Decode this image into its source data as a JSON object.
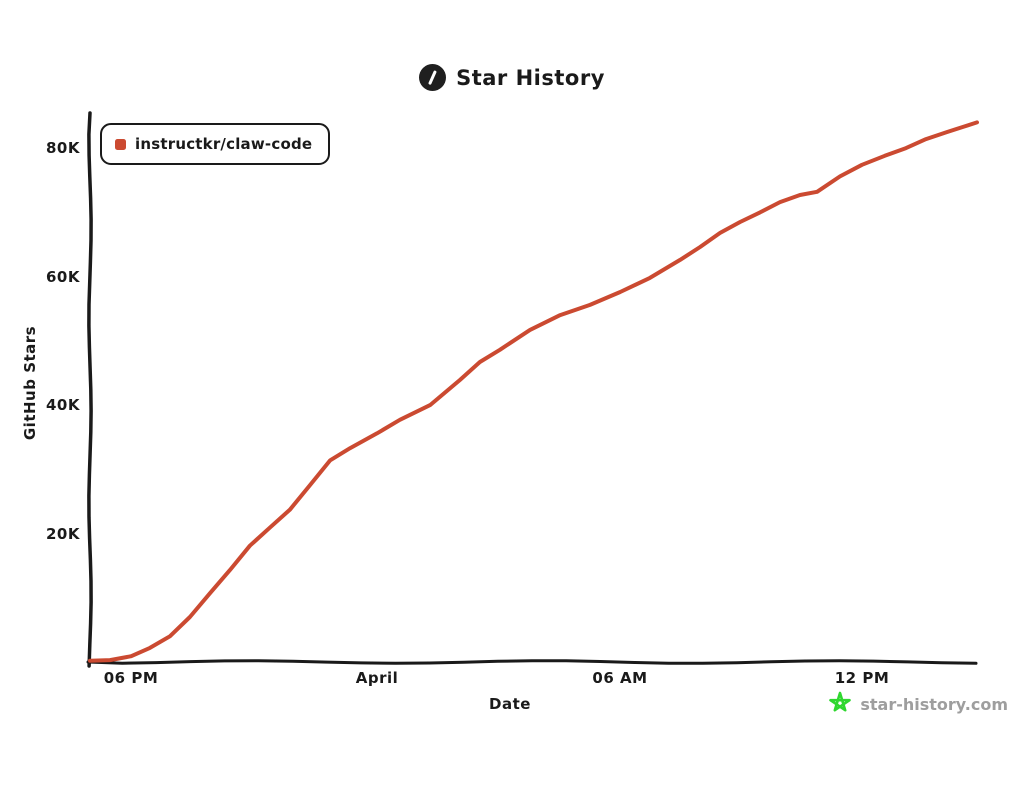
{
  "header": {
    "title": "Star History",
    "logo_icon": "star-history-logo"
  },
  "legend": {
    "items": [
      {
        "label": "instructkr/claw-code",
        "color": "#cb4a31"
      }
    ]
  },
  "watermark": {
    "label": "star-history.com",
    "icon": "green-star-icon",
    "icon_color": "#2fd72f",
    "text_color": "#9e9e9e"
  },
  "colors": {
    "axis": "#1a1a1a",
    "text": "#1a1a1a"
  },
  "chart_data": {
    "type": "line",
    "title": "Star History",
    "xlabel": "Date",
    "ylabel": "GitHub Stars",
    "grid": false,
    "legend_position": "top-left",
    "x_unit": "hours from ~5 PM Mar 31 to ~2:45 PM Apr 1",
    "y_unit": "GitHub stars, thousands",
    "xlim": [
      0,
      21.75
    ],
    "ylim": [
      0,
      85
    ],
    "x_ticks": [
      {
        "t": 1.01,
        "label": "06 PM"
      },
      {
        "t": 7.04,
        "label": "April"
      },
      {
        "t": 13.0,
        "label": "06 AM"
      },
      {
        "t": 18.93,
        "label": "12 PM"
      }
    ],
    "y_ticks": [
      {
        "v": 20,
        "label": "20K"
      },
      {
        "v": 40,
        "label": "40K"
      },
      {
        "v": 60,
        "label": "60K"
      },
      {
        "v": 80,
        "label": "80K"
      }
    ],
    "series": [
      {
        "name": "instructkr/claw-code",
        "color": "#cb4a31",
        "final_value_kstars": 84,
        "points": [
          [
            0,
            0.2
          ],
          [
            0.49,
            0.3
          ],
          [
            1.01,
            0.9
          ],
          [
            1.47,
            2.2
          ],
          [
            1.96,
            4.0
          ],
          [
            2.45,
            7.0
          ],
          [
            2.94,
            10.7
          ],
          [
            3.43,
            14.3
          ],
          [
            3.92,
            18.1
          ],
          [
            4.41,
            20.9
          ],
          [
            4.9,
            23.7
          ],
          [
            5.39,
            27.5
          ],
          [
            5.89,
            31.4
          ],
          [
            6.38,
            33.3
          ],
          [
            7.04,
            35.6
          ],
          [
            7.6,
            37.7
          ],
          [
            8.34,
            40.0
          ],
          [
            9.07,
            43.9
          ],
          [
            9.56,
            46.7
          ],
          [
            10.05,
            48.6
          ],
          [
            10.79,
            51.7
          ],
          [
            11.53,
            54.0
          ],
          [
            12.26,
            55.6
          ],
          [
            13.0,
            57.6
          ],
          [
            13.73,
            59.8
          ],
          [
            14.47,
            62.6
          ],
          [
            14.96,
            64.6
          ],
          [
            15.45,
            66.8
          ],
          [
            15.94,
            68.5
          ],
          [
            16.43,
            70.0
          ],
          [
            16.92,
            71.6
          ],
          [
            17.41,
            72.7
          ],
          [
            17.83,
            73.2
          ],
          [
            18.39,
            75.6
          ],
          [
            18.93,
            77.4
          ],
          [
            19.49,
            78.8
          ],
          [
            20.01,
            80.0
          ],
          [
            20.5,
            81.4
          ],
          [
            21.01,
            82.5
          ],
          [
            21.41,
            83.3
          ],
          [
            21.75,
            84.0
          ]
        ]
      }
    ]
  }
}
